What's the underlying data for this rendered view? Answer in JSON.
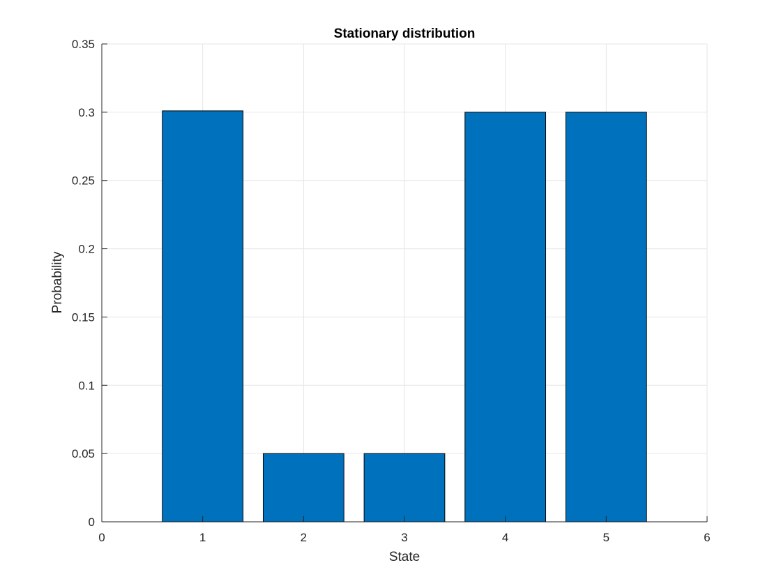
{
  "colors": {
    "bar_fill": "#0072BD",
    "bar_edge": "#000000",
    "axis": "#262626",
    "grid": "#e6e6e6"
  },
  "chart_data": {
    "type": "bar",
    "title": "Stationary distribution",
    "xlabel": "State",
    "ylabel": "Probability",
    "categories": [
      1,
      2,
      3,
      4,
      5
    ],
    "values": [
      0.301,
      0.05,
      0.05,
      0.3,
      0.3
    ],
    "xlim": [
      0,
      6
    ],
    "ylim": [
      0,
      0.35
    ],
    "xticks": [
      "0",
      "1",
      "2",
      "3",
      "4",
      "5",
      "6"
    ],
    "yticks": [
      "0",
      "0.05",
      "0.1",
      "0.15",
      "0.2",
      "0.25",
      "0.3",
      "0.35"
    ],
    "grid": true,
    "legend": "none"
  }
}
